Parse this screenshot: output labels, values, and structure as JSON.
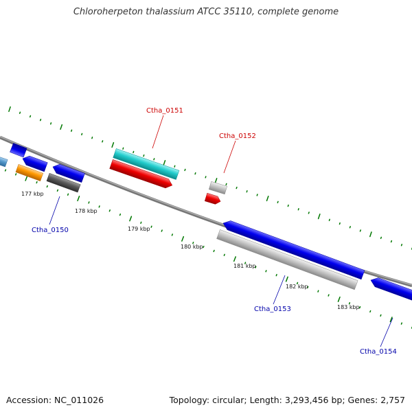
{
  "header": {
    "title": "Chloroherpeton thalassium ATCC 35110, complete genome"
  },
  "footer": {
    "accession": "Accession: NC_011026",
    "topology": "Topology: circular; Length: 3,293,456 bp; Genes: 2,757"
  },
  "ruler": {
    "ticks": [
      "177 kbp",
      "178 kbp",
      "179 kbp",
      "180 kbp",
      "181 kbp",
      "182 kbp",
      "183 kbp"
    ]
  },
  "gene_labels": {
    "ctha_0150": "Ctha_0150",
    "ctha_0151": "Ctha_0151",
    "ctha_0152": "Ctha_0152",
    "ctha_0153": "Ctha_0153",
    "ctha_0154": "Ctha_0154"
  },
  "colors": {
    "forward_label": "#cc0000",
    "reverse_label": "#0000aa",
    "blue_gene": "#0000ee",
    "cyan_gene": "#20c8c8",
    "red_gene": "#ee0000",
    "orange_gene": "#ff9900",
    "gray_gene": "#bbbbbb",
    "dark_gray_gene": "#555555",
    "steel_gene": "#5599cc",
    "tick_green": "#007700",
    "backbone": "#888888"
  }
}
